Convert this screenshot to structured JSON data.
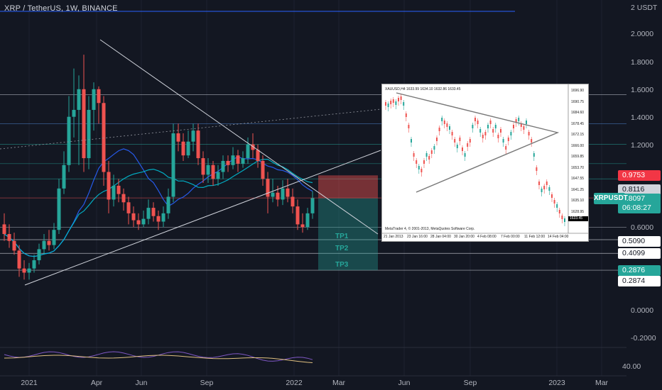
{
  "header": {
    "title": "XRP / TetherUS, 1W, BINANCE"
  },
  "chart_data": {
    "type": "candlestick",
    "title": "XRP / TetherUS, 1W, BINANCE",
    "y_unit": "USDT",
    "y_ticks": [
      "2 USDT",
      "2.0000",
      "1.8000",
      "1.6000",
      "1.4000",
      "1.2000",
      "0.6000",
      "0.0000",
      "-0.2000"
    ],
    "x_ticks": [
      "2021",
      "Apr",
      "Jun",
      "Sep",
      "2022",
      "Mar",
      "Jun",
      "Sep",
      "2023",
      "Mar"
    ],
    "candles": [
      [
        0.62,
        0.55,
        0.7,
        0.5
      ],
      [
        0.55,
        0.5,
        0.62,
        0.45
      ],
      [
        0.5,
        0.43,
        0.56,
        0.4
      ],
      [
        0.43,
        0.3,
        0.47,
        0.24
      ],
      [
        0.3,
        0.27,
        0.36,
        0.22
      ],
      [
        0.27,
        0.3,
        0.34,
        0.22
      ],
      [
        0.3,
        0.36,
        0.4,
        0.27
      ],
      [
        0.36,
        0.44,
        0.48,
        0.33
      ],
      [
        0.44,
        0.5,
        0.55,
        0.4
      ],
      [
        0.5,
        0.47,
        0.58,
        0.43
      ],
      [
        0.47,
        0.58,
        0.63,
        0.44
      ],
      [
        0.58,
        0.88,
        0.95,
        0.55
      ],
      [
        0.88,
        1.05,
        1.15,
        0.84
      ],
      [
        1.05,
        1.4,
        1.55,
        1.0
      ],
      [
        1.4,
        1.45,
        1.75,
        1.25
      ],
      [
        1.45,
        1.6,
        1.7,
        1.05
      ],
      [
        1.6,
        1.1,
        1.85,
        1.0
      ],
      [
        1.1,
        1.45,
        1.55,
        1.02
      ],
      [
        1.45,
        1.6,
        1.65,
        1.3
      ],
      [
        1.6,
        1.5,
        1.62,
        1.35
      ],
      [
        1.5,
        1.0,
        1.55,
        0.9
      ],
      [
        1.0,
        0.8,
        1.08,
        0.7
      ],
      [
        0.8,
        0.9,
        0.98,
        0.75
      ],
      [
        0.9,
        0.84,
        0.95,
        0.78
      ],
      [
        0.84,
        0.78,
        0.88,
        0.72
      ],
      [
        0.78,
        0.7,
        0.82,
        0.62
      ],
      [
        0.7,
        0.65,
        0.75,
        0.6
      ],
      [
        0.65,
        0.62,
        0.7,
        0.58
      ],
      [
        0.62,
        0.66,
        0.72,
        0.6
      ],
      [
        0.66,
        0.74,
        0.8,
        0.62
      ],
      [
        0.74,
        0.68,
        0.78,
        0.64
      ],
      [
        0.68,
        0.64,
        0.72,
        0.58
      ],
      [
        0.64,
        0.7,
        0.75,
        0.6
      ],
      [
        0.7,
        0.82,
        0.88,
        0.66
      ],
      [
        0.82,
        1.28,
        1.35,
        0.78
      ],
      [
        1.28,
        1.22,
        1.35,
        1.15
      ],
      [
        1.22,
        1.12,
        1.28,
        1.08
      ],
      [
        1.12,
        1.22,
        1.3,
        1.1
      ],
      [
        1.22,
        1.3,
        1.35,
        1.15
      ],
      [
        1.3,
        1.1,
        1.35,
        1.05
      ],
      [
        1.1,
        0.98,
        1.15,
        0.92
      ],
      [
        0.98,
        1.05,
        1.1,
        0.92
      ],
      [
        1.05,
        0.95,
        1.08,
        0.9
      ],
      [
        0.95,
        1.0,
        1.05,
        0.9
      ],
      [
        1.0,
        1.08,
        1.12,
        0.95
      ],
      [
        1.08,
        1.05,
        1.12,
        1.0
      ],
      [
        1.05,
        1.12,
        1.18,
        1.02
      ],
      [
        1.12,
        1.06,
        1.16,
        1.0
      ],
      [
        1.06,
        1.1,
        1.15,
        1.03
      ],
      [
        1.1,
        1.2,
        1.25,
        1.06
      ],
      [
        1.2,
        1.16,
        1.28,
        1.1
      ],
      [
        1.16,
        1.08,
        1.2,
        1.03
      ],
      [
        1.08,
        0.95,
        1.12,
        0.9
      ],
      [
        0.95,
        0.82,
        1.0,
        0.7
      ],
      [
        0.82,
        0.85,
        0.95,
        0.78
      ],
      [
        0.85,
        0.8,
        0.9,
        0.75
      ],
      [
        0.8,
        0.88,
        0.94,
        0.76
      ],
      [
        0.88,
        0.82,
        0.95,
        0.78
      ],
      [
        0.82,
        0.75,
        0.88,
        0.7
      ],
      [
        0.75,
        0.62,
        0.8,
        0.58
      ],
      [
        0.62,
        0.6,
        0.7,
        0.56
      ],
      [
        0.6,
        0.7,
        0.74,
        0.58
      ],
      [
        0.7,
        0.81,
        0.86,
        0.66
      ]
    ],
    "horizontal_levels": [
      1.5603,
      1.35,
      1.2,
      1.06,
      0.95,
      0.8116,
      0.6
    ],
    "targets": [
      {
        "label": "TP1",
        "price": 0.509
      },
      {
        "label": "TP2",
        "price": 0.4099
      },
      {
        "label": "TP3",
        "price": 0.2876
      }
    ],
    "price_labels": [
      {
        "value": "0.9753",
        "kind": "stop"
      },
      {
        "value": "0.8116",
        "kind": "level"
      },
      {
        "value": "0.8097",
        "kind": "last"
      },
      {
        "value": "06:08:27",
        "kind": "countdown"
      },
      {
        "value": "0.5090",
        "kind": "target"
      },
      {
        "value": "0.4099",
        "kind": "target"
      },
      {
        "value": "0.2876",
        "kind": "target-hl"
      },
      {
        "value": "0.2874",
        "kind": "target"
      }
    ],
    "symbol_tag": "XRPUSDT",
    "oscillator_label": "40.00",
    "colors": {
      "up": "#26a69a",
      "down": "#ef5350",
      "background": "#131722"
    }
  },
  "inset": {
    "header": "XAUUSD,H4  1633.99 1634.10 1632.86 1633.45",
    "copyright": "MetaTrader 4, © 2001-2013, MetaQuotes Software Corp.",
    "y_ticks": [
      "1696.90",
      "1690.75",
      "1684.60",
      "1678.45",
      "1672.15",
      "1666.00",
      "1659.85",
      "1653.70",
      "1647.55",
      "1641.25",
      "1635.10",
      "1628.95"
    ],
    "x_ticks": [
      "21 Jan 2013",
      "23 Jan 16:00",
      "28 Jan 04:00",
      "30 Jan 20:00",
      "4 Feb 08:00",
      "7 Feb 00:00",
      "11 Feb 12:00",
      "14 Feb 04:00"
    ],
    "last_price": "1633.45"
  }
}
